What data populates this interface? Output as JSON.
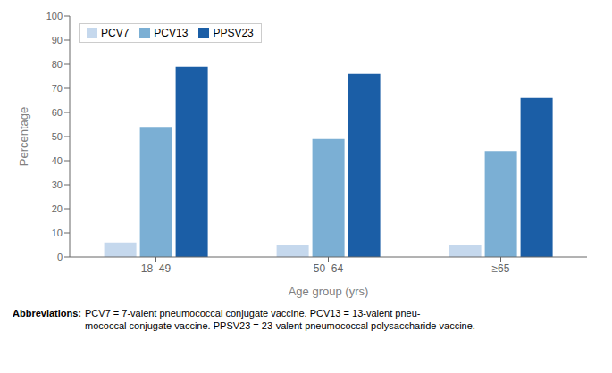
{
  "chart_data": {
    "type": "bar",
    "categories": [
      "18–49",
      "50–64",
      "≥65"
    ],
    "series": [
      {
        "name": "PCV7",
        "color": "#c5d8ed",
        "values": [
          6,
          5,
          5
        ]
      },
      {
        "name": "PCV13",
        "color": "#7bafd4",
        "values": [
          54,
          49,
          44
        ]
      },
      {
        "name": "PPSV23",
        "color": "#1b5ea6",
        "values": [
          79,
          76,
          66
        ]
      }
    ],
    "xlabel": "Age group (yrs)",
    "ylabel": "Percentage",
    "ylim": [
      0,
      100
    ],
    "yticks": [
      0,
      10,
      20,
      30,
      40,
      50,
      60,
      70,
      80,
      90,
      100
    ],
    "grid": false,
    "legend": "upper left",
    "annotations": [
      "Abbreviations:",
      "PCV7 = 7-valent pneumococcal conjugate vaccine. PCV13 = 13-valent pneu-\nmococcal conjugate vaccine. PPSV23 = 23-valent pneumococcal polysaccharide vaccine."
    ]
  }
}
